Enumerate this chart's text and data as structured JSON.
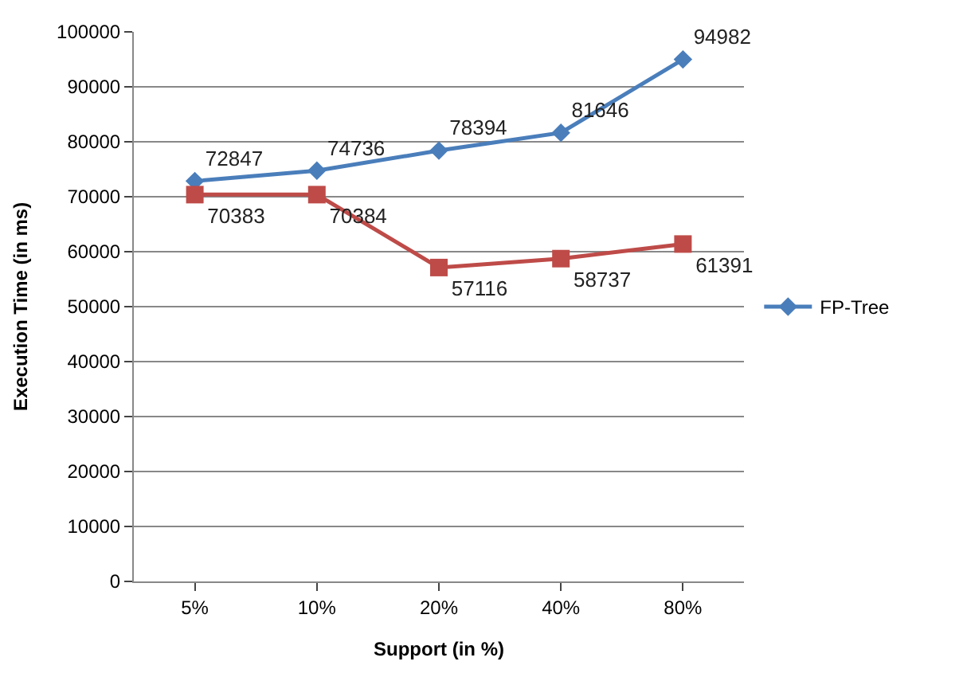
{
  "chart_data": {
    "type": "line",
    "xlabel": "Support (in %)",
    "ylabel": "Execution Time (in ms)",
    "categories": [
      "5%",
      "10%",
      "20%",
      "40%",
      "80%"
    ],
    "series": [
      {
        "name": "FP-Tree",
        "color": "#4a7ebb",
        "marker": "diamond",
        "values": [
          72847,
          74736,
          78394,
          81646,
          94982
        ]
      },
      {
        "color": "#be4b48",
        "marker": "square",
        "values": [
          70383,
          70384,
          57116,
          58737,
          61391
        ]
      }
    ],
    "ylim": [
      0,
      100000
    ],
    "yticks": [
      0,
      10000,
      20000,
      30000,
      40000,
      50000,
      60000,
      70000,
      80000,
      90000,
      100000
    ],
    "grid": "y",
    "legend": "right",
    "data_labels": true
  }
}
